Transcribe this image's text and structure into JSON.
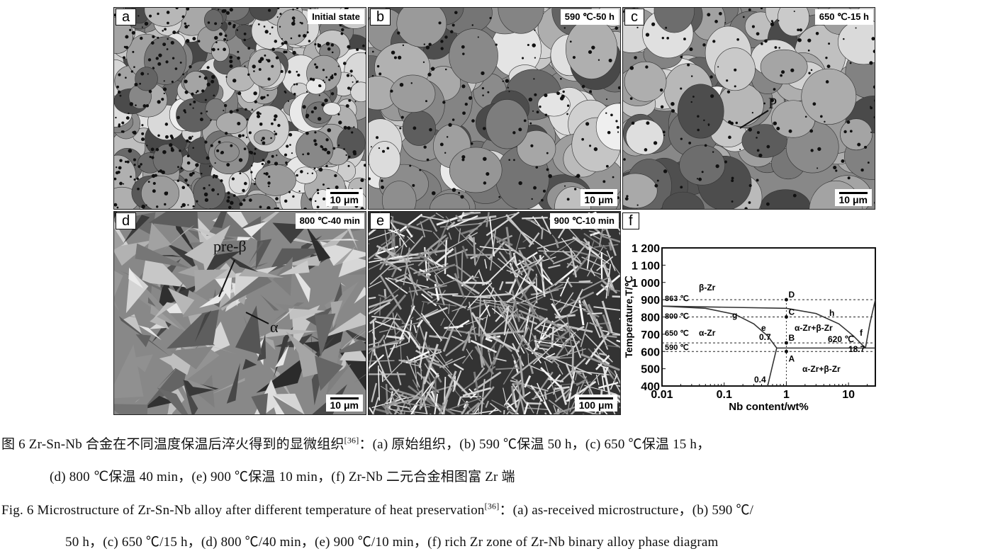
{
  "panels": [
    {
      "label": "a",
      "condition": "Initial state",
      "scale": "10 μm",
      "tone": "fine"
    },
    {
      "label": "b",
      "condition": "590 ℃-50 h",
      "scale": "10 μm",
      "tone": "coarse"
    },
    {
      "label": "c",
      "condition": "650 ℃-15 h",
      "scale": "10 μm",
      "tone": "coarse",
      "annotation": "P"
    },
    {
      "label": "d",
      "condition": "800 ℃-40 min",
      "scale": "10 μm",
      "tone": "martensite",
      "annotations": [
        "pre-β",
        "α"
      ]
    },
    {
      "label": "e",
      "condition": "900 ℃-10 min",
      "scale": "100 μm",
      "tone": "needle"
    }
  ],
  "chart_data": {
    "label": "f",
    "type": "line",
    "xlabel": "Nb content/wt%",
    "ylabel": "Temperature,T/℃",
    "xscale": "log",
    "xlim": [
      0.01,
      27
    ],
    "ylim": [
      400,
      1200
    ],
    "xticks": [
      "0.01",
      "0.1",
      "1",
      "10"
    ],
    "yticks": [
      "400",
      "500",
      "600",
      "700",
      "800",
      "900",
      "1 000",
      "1 100",
      "1 200"
    ],
    "curves": [
      {
        "points": [
          [
            0.01,
            863
          ],
          [
            0.05,
            850
          ],
          [
            0.15,
            815
          ],
          [
            0.3,
            760
          ],
          [
            0.5,
            690
          ],
          [
            0.7,
            620
          ]
        ]
      },
      {
        "points": [
          [
            0.7,
            620
          ],
          [
            0.6,
            520
          ],
          [
            0.5,
            400
          ]
        ]
      },
      {
        "points": [
          [
            0.01,
            863
          ],
          [
            1,
            850
          ],
          [
            3,
            820
          ],
          [
            7,
            760
          ],
          [
            12,
            690
          ],
          [
            18.7,
            620
          ]
        ]
      },
      {
        "points": [
          [
            0.7,
            620
          ],
          [
            27,
            620
          ]
        ]
      },
      {
        "points": [
          [
            18.7,
            620
          ],
          [
            22,
            760
          ],
          [
            27,
            900
          ]
        ]
      }
    ],
    "dashed_lines": [
      900,
      800,
      650,
      600
    ],
    "dashed_vertical": 1,
    "points": [
      {
        "name": "D",
        "T": 900
      },
      {
        "name": "C",
        "T": 800
      },
      {
        "name": "B",
        "T": 650
      },
      {
        "name": "A",
        "T": 600
      }
    ],
    "text_labels": [
      "β-Zr",
      "863 ℃",
      "800 ℃",
      "650 ℃",
      "590 ℃",
      "α-Zr",
      "g",
      "e",
      "0.7",
      "0.4",
      "h",
      "f",
      "α-Zr+β-Zr",
      "620 ℃",
      "18.7",
      "α-Zr+β-Zr"
    ]
  },
  "caption": {
    "cn_line1": "图 6   Zr-Sn-Nb 合金在不同温度保温后淬火得到的显微组织",
    "cn_ref": "[36]",
    "cn_line1b": "：(a) 原始组织，(b) 590 ℃保温 50 h，(c) 650 ℃保温 15 h，",
    "cn_line2": "(d) 800 ℃保温 40 min，(e) 900 ℃保温 10 min，(f) Zr-Nb 二元合金相图富 Zr 端",
    "en_line1": "Fig. 6   Microstructure of Zr-Sn-Nb alloy after different temperature of heat preservation",
    "en_ref": "[36]",
    "en_line1b": "：(a) as-received microstructure，(b) 590 ℃/",
    "en_line2": "50 h，(c) 650 ℃/15 h，(d) 800 ℃/40 min，(e) 900 ℃/10 min，(f) rich Zr zone of Zr-Nb binary alloy phase diagram"
  }
}
